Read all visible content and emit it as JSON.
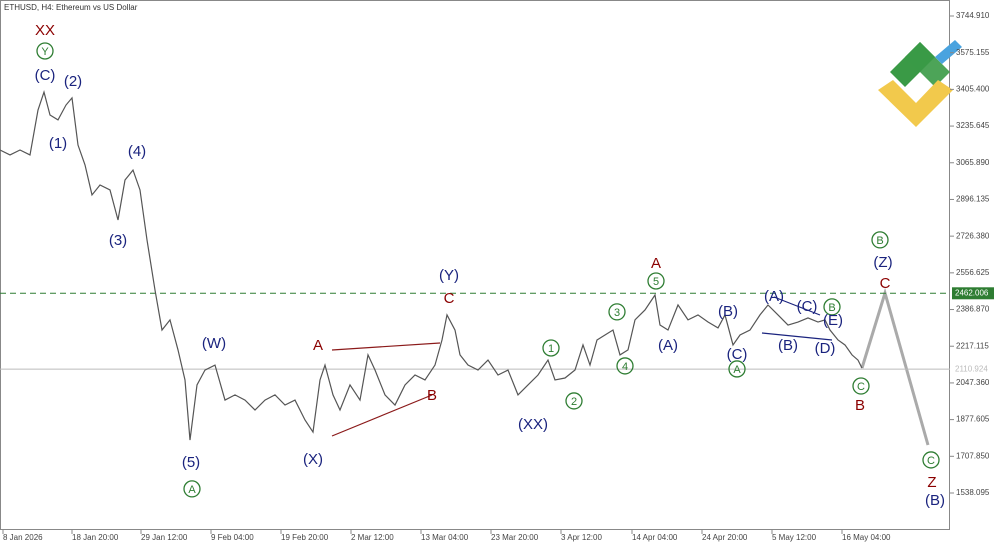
{
  "chart_data": {
    "type": "line",
    "title": "ETHUSD, H4:  Ethereum vs US Dollar",
    "color": "#555555",
    "x": [
      0,
      10,
      20,
      30,
      38,
      44,
      50,
      58,
      66,
      72,
      78,
      85,
      92,
      100,
      110,
      118,
      125,
      133,
      140,
      147,
      155,
      162,
      170,
      178,
      185,
      190,
      197,
      205,
      215,
      225,
      235,
      245,
      255,
      265,
      275,
      285,
      295,
      305,
      313,
      320,
      325,
      333,
      340,
      350,
      360,
      368,
      375,
      385,
      395,
      405,
      415,
      425,
      435,
      442,
      447,
      455,
      460,
      468,
      478,
      488,
      498,
      508,
      518,
      528,
      538,
      548,
      555,
      565,
      575,
      583,
      590,
      597,
      605,
      613,
      620,
      628,
      635,
      645,
      655,
      660,
      668,
      678,
      688,
      698,
      708,
      718,
      725,
      733,
      740,
      750,
      760,
      768,
      778,
      788,
      798,
      808,
      818,
      825,
      830,
      838,
      845,
      852,
      858,
      862
    ],
    "values": [
      3125,
      3102,
      3125,
      3102,
      3310,
      3393,
      3287,
      3264,
      3333,
      3366,
      3148,
      3056,
      2917,
      2963,
      2940,
      2801,
      2986,
      3032,
      2940,
      2709,
      2477,
      2292,
      2339,
      2200,
      2061,
      1783,
      2038,
      2107,
      2130,
      1968,
      1992,
      1968,
      1922,
      1968,
      1992,
      1945,
      1968,
      1876,
      1820,
      2061,
      2130,
      1992,
      1922,
      2038,
      1968,
      2177,
      2107,
      1992,
      1945,
      2038,
      2084,
      2061,
      2130,
      2246,
      2362,
      2292,
      2177,
      2130,
      2107,
      2153,
      2084,
      2107,
      1992,
      2038,
      2084,
      2153,
      2061,
      2070,
      2107,
      2223,
      2130,
      2246,
      2269,
      2292,
      2177,
      2200,
      2339,
      2385,
      2454,
      2315,
      2292,
      2408,
      2339,
      2362,
      2329,
      2302,
      2362,
      2223,
      2269,
      2292,
      2362,
      2408,
      2362,
      2315,
      2329,
      2348,
      2329,
      2339,
      2292,
      2246,
      2223,
      2177,
      2153,
      2116
    ],
    "xlim": [
      0,
      950
    ],
    "ylim": [
      1366.9,
      3818.9
    ],
    "xticks": [
      {
        "value": 3,
        "label": "8 Jan 2026"
      },
      {
        "value": 72,
        "label": "18 Jan 20:00"
      },
      {
        "value": 141,
        "label": "29 Jan 12:00"
      },
      {
        "value": 211,
        "label": "9 Feb 04:00"
      },
      {
        "value": 281,
        "label": "19 Feb 20:00"
      },
      {
        "value": 351,
        "label": "2 Mar 12:00"
      },
      {
        "value": 421,
        "label": "13 Mar 04:00"
      },
      {
        "value": 491,
        "label": "23 Mar 20:00"
      },
      {
        "value": 561,
        "label": "3 Apr 12:00"
      },
      {
        "value": 632,
        "label": "14 Apr 04:00"
      },
      {
        "value": 702,
        "label": "24 Apr 20:00"
      },
      {
        "value": 772,
        "label": "5 May 12:00"
      },
      {
        "value": 842,
        "label": "16 May 04:00"
      }
    ],
    "yticks": [
      {
        "value": 3744.91,
        "label": "3744.910"
      },
      3575.155,
      {
        "value": 3405.4,
        "label": "3405.400"
      },
      3235.645,
      {
        "value": 3065.89,
        "label": "3065.890"
      },
      2896.135,
      {
        "value": 2726.38,
        "label": "2726.380"
      },
      2556.625,
      {
        "value": 2386.87,
        "label": "2386.870"
      },
      2217.115,
      {
        "value": 2047.36,
        "label": "2047.360"
      },
      1877.605,
      {
        "value": 1707.85,
        "label": "1707.850"
      },
      1538.095
    ],
    "levels": [
      {
        "value": 2462.006,
        "color": "#2e7d32"
      },
      {
        "value": 2110.924,
        "color": "#bbbbbb"
      }
    ],
    "annotations": [
      {
        "text": "XX",
        "x": 45,
        "y": 3680,
        "color": "#8b0000"
      },
      {
        "text": "Y",
        "x": 45,
        "y": 3583,
        "color": "#2e7d32",
        "style": "circle"
      },
      {
        "text": "(C)",
        "x": 45,
        "y": 3472,
        "color": "#1a237e"
      },
      {
        "text": "(2)",
        "x": 73,
        "y": 3444,
        "color": "#1a237e"
      },
      {
        "text": "(1)",
        "x": 58,
        "y": 3157,
        "color": "#1a237e"
      },
      {
        "text": "(4)",
        "x": 137,
        "y": 3120,
        "color": "#1a237e"
      },
      {
        "text": "(3)",
        "x": 118,
        "y": 2709,
        "color": "#1a237e"
      },
      {
        "text": "(W)",
        "x": 214,
        "y": 2232,
        "color": "#1a237e"
      },
      {
        "text": "(5)",
        "x": 191,
        "y": 1682,
        "color": "#1a237e"
      },
      {
        "text": "A",
        "x": 192,
        "y": 1557,
        "color": "#2e7d32",
        "style": "circle"
      },
      {
        "text": "(X)",
        "x": 313,
        "y": 1695,
        "color": "#1a237e"
      },
      {
        "text": "A",
        "x": 318,
        "y": 2223,
        "color": "#8b0000"
      },
      {
        "text": "B",
        "x": 432,
        "y": 1992,
        "color": "#8b0000"
      },
      {
        "text": "C",
        "x": 449,
        "y": 2440,
        "color": "#8b0000"
      },
      {
        "text": "(Y)",
        "x": 449,
        "y": 2547,
        "color": "#1a237e"
      },
      {
        "text": "(XX)",
        "x": 533,
        "y": 1857,
        "color": "#1a237e"
      },
      {
        "text": "1",
        "x": 551,
        "y": 2209,
        "color": "#2e7d32",
        "style": "circle"
      },
      {
        "text": "2",
        "x": 574,
        "y": 1964,
        "color": "#2e7d32",
        "style": "circle"
      },
      {
        "text": "3",
        "x": 617,
        "y": 2376,
        "color": "#2e7d32",
        "style": "circle"
      },
      {
        "text": "4",
        "x": 625,
        "y": 2126,
        "color": "#2e7d32",
        "style": "circle"
      },
      {
        "text": "5",
        "x": 656,
        "y": 2519,
        "color": "#2e7d32",
        "style": "circle"
      },
      {
        "text": "A",
        "x": 656,
        "y": 2602,
        "color": "#8b0000"
      },
      {
        "text": "(A)",
        "x": 668,
        "y": 2223,
        "color": "#1a237e"
      },
      {
        "text": "(B)",
        "x": 728,
        "y": 2380,
        "color": "#1a237e"
      },
      {
        "text": "(C)",
        "x": 737,
        "y": 2181,
        "color": "#1a237e"
      },
      {
        "text": "A",
        "x": 737,
        "y": 2112,
        "color": "#2e7d32",
        "style": "circle"
      },
      {
        "text": "(A)",
        "x": 774,
        "y": 2450,
        "color": "#1a237e"
      },
      {
        "text": "(C)",
        "x": 807,
        "y": 2403,
        "color": "#1a237e"
      },
      {
        "text": "B",
        "x": 832,
        "y": 2399,
        "color": "#2e7d32",
        "style": "circle"
      },
      {
        "text": "(B)",
        "x": 788,
        "y": 2223,
        "color": "#1a237e"
      },
      {
        "text": "(E)",
        "x": 833,
        "y": 2339,
        "color": "#1a237e"
      },
      {
        "text": "(D)",
        "x": 825,
        "y": 2209,
        "color": "#1a237e"
      },
      {
        "text": "C",
        "x": 861,
        "y": 2033,
        "color": "#2e7d32",
        "style": "circle"
      },
      {
        "text": "B",
        "x": 860,
        "y": 1945,
        "color": "#8b0000"
      },
      {
        "text": "B",
        "x": 880,
        "y": 2709,
        "color": "#2e7d32",
        "style": "circle"
      },
      {
        "text": "(Z)",
        "x": 883,
        "y": 2607,
        "color": "#1a237e"
      },
      {
        "text": "C",
        "x": 885,
        "y": 2510,
        "color": "#8b0000"
      },
      {
        "text": "C",
        "x": 931,
        "y": 1691,
        "color": "#2e7d32",
        "style": "circle"
      },
      {
        "text": "Z",
        "x": 932,
        "y": 1589,
        "color": "#8b0000"
      },
      {
        "text": "(B)",
        "x": 935,
        "y": 1506,
        "color": "#1a237e"
      }
    ]
  }
}
